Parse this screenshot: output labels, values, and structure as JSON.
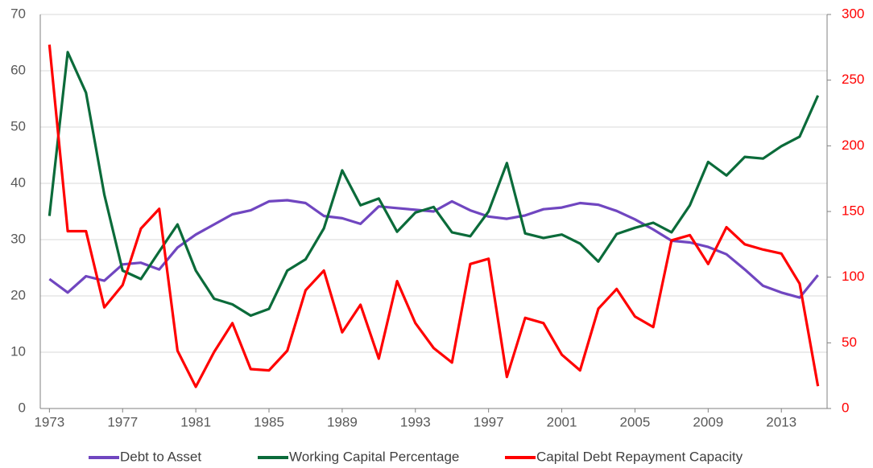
{
  "chart_data": {
    "type": "line",
    "x": [
      1973,
      1974,
      1975,
      1976,
      1977,
      1978,
      1979,
      1980,
      1981,
      1982,
      1983,
      1984,
      1985,
      1986,
      1987,
      1988,
      1989,
      1990,
      1991,
      1992,
      1993,
      1994,
      1995,
      1996,
      1997,
      1998,
      1999,
      2000,
      2001,
      2002,
      2003,
      2004,
      2005,
      2006,
      2007,
      2008,
      2009,
      2010,
      2011,
      2012,
      2013,
      2014,
      2015
    ],
    "xlim": [
      1972.5,
      2015.5
    ],
    "xticks": [
      1973,
      1977,
      1981,
      1985,
      1989,
      1993,
      1997,
      2001,
      2005,
      2009,
      2013
    ],
    "ylim": [
      0,
      70
    ],
    "yticks": [
      0,
      10,
      20,
      30,
      40,
      50,
      60,
      70
    ],
    "y2lim": [
      0,
      300
    ],
    "y2ticks": [
      0,
      50,
      100,
      150,
      200,
      250,
      300
    ],
    "y2color": "#ff0000",
    "grid": true,
    "legend": "bottom",
    "series": [
      {
        "name": "Debt to Asset",
        "color": "#7046c0",
        "values": [
          23.0,
          20.6,
          23.5,
          22.7,
          25.6,
          25.9,
          24.7,
          28.6,
          30.9,
          32.7,
          34.5,
          35.2,
          36.8,
          37.0,
          36.5,
          34.2,
          33.8,
          32.8,
          35.9,
          35.6,
          35.3,
          35.0,
          36.8,
          35.2,
          34.1,
          33.7,
          34.3,
          35.4,
          35.7,
          36.5,
          36.2,
          35.1,
          33.6,
          31.8,
          29.8,
          29.5,
          28.7,
          27.4,
          24.7,
          21.8,
          20.6,
          19.7,
          23.7
        ]
      },
      {
        "name": "Working Capital Percentage",
        "color": "#0b6b3a",
        "values": [
          34.2,
          63.3,
          56.1,
          38.0,
          24.5,
          23.0,
          27.9,
          32.7,
          24.5,
          19.5,
          18.5,
          16.5,
          17.7,
          24.5,
          26.5,
          32.0,
          42.3,
          36.1,
          37.3,
          31.4,
          34.8,
          35.8,
          31.3,
          30.6,
          35.0,
          43.6,
          31.1,
          30.3,
          30.9,
          29.3,
          26.1,
          31.0,
          32.1,
          33.0,
          31.3,
          36.1,
          43.8,
          41.4,
          44.7,
          44.4,
          46.6,
          48.3,
          55.6
        ]
      },
      {
        "name": "Capital Debt Repayment Capacity",
        "color": "#ff0000",
        "axis": "y2",
        "values": [
          277,
          135,
          135,
          77,
          94,
          137,
          152,
          44,
          16.5,
          43,
          65,
          30,
          29,
          44,
          90,
          105,
          58,
          79,
          38,
          97,
          65,
          46,
          35,
          110,
          114,
          24,
          69,
          65,
          41,
          29,
          76,
          91,
          70,
          62,
          128,
          132,
          110,
          138,
          125,
          121,
          118,
          95,
          17
        ]
      }
    ]
  }
}
